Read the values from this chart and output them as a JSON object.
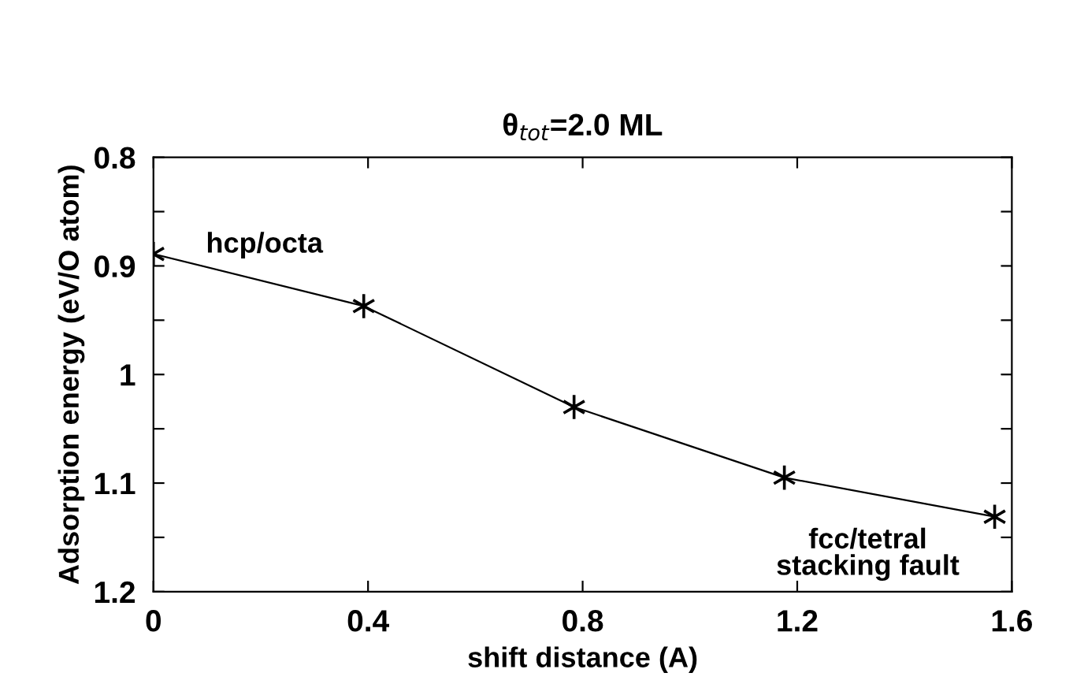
{
  "chart_data": {
    "type": "line",
    "title": "θ$_{tot}$=2.0 ML",
    "xlabel": "shift distance (A)",
    "ylabel": "Adsorption energy (eV/O atom)",
    "x": [
      0,
      0.392,
      0.784,
      1.176,
      1.568
    ],
    "series": [
      {
        "color": "#000000",
        "values": [
          0.889,
          0.937,
          1.03,
          1.095,
          1.131
        ]
      }
    ],
    "marker": "cross",
    "line_style": "solid",
    "grid": false,
    "legend": false,
    "xlim": [
      0,
      1.6
    ],
    "xticks": [
      0,
      0.4,
      0.8,
      1.2,
      1.6
    ],
    "ylim": [
      1.2,
      0.8
    ],
    "yticks": [
      0.8,
      {
        "value": 0.85,
        "label": null
      },
      0.9,
      {
        "value": 0.95,
        "label": null
      },
      1,
      {
        "value": 1.05,
        "label": null
      },
      1.1,
      {
        "value": 1.15,
        "label": null
      },
      1.2
    ],
    "annotations": [
      {
        "text": "hcp/octa",
        "x": 0,
        "y": 0.889
      },
      {
        "text": "fcc/tetral\nstacking fault",
        "x": 1.568,
        "y": 1.131
      }
    ]
  }
}
